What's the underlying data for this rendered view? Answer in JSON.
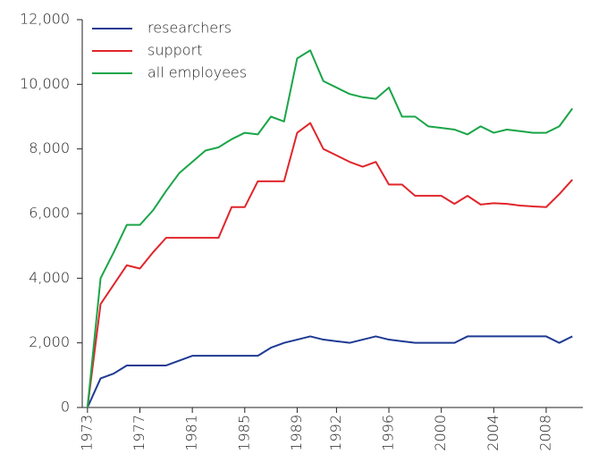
{
  "chart_data": {
    "type": "line",
    "x": [
      1973,
      1974,
      1975,
      1976,
      1977,
      1978,
      1979,
      1980,
      1981,
      1982,
      1983,
      1984,
      1985,
      1986,
      1987,
      1988,
      1989,
      1990,
      1991,
      1992,
      1993,
      1994,
      1995,
      1996,
      1997,
      1998,
      1999,
      2000,
      2001,
      2002,
      2003,
      2004,
      2005,
      2006,
      2007,
      2008,
      2009,
      2010
    ],
    "series": [
      {
        "name": "researchers",
        "color": "#1f3a93",
        "values": [
          0,
          900,
          1050,
          1300,
          1300,
          1300,
          1300,
          1450,
          1600,
          1600,
          1600,
          1600,
          1600,
          1600,
          1850,
          2000,
          2100,
          2200,
          2100,
          2050,
          2000,
          2100,
          2200,
          2100,
          2050,
          2000,
          2000,
          2000,
          2000,
          2200,
          2200,
          2200,
          2200,
          2200,
          2200,
          2200,
          2000,
          2200
        ]
      },
      {
        "name": "support",
        "color": "#e0262b",
        "values": [
          0,
          3200,
          3800,
          4400,
          4300,
          4800,
          5250,
          5250,
          5250,
          5250,
          5250,
          6200,
          6200,
          7000,
          7000,
          7000,
          8500,
          8800,
          8000,
          7800,
          7600,
          7450,
          7600,
          6900,
          6900,
          6550,
          6550,
          6550,
          6300,
          6550,
          6280,
          6320,
          6300,
          6250,
          6220,
          6200,
          6600,
          7050
        ]
      },
      {
        "name": "all employees",
        "color": "#1aa548",
        "values": [
          0,
          4000,
          4800,
          5650,
          5650,
          6100,
          6700,
          7250,
          7600,
          7950,
          8050,
          8300,
          8500,
          8450,
          9000,
          8850,
          10800,
          11050,
          10100,
          9900,
          9700,
          9600,
          9550,
          9900,
          9000,
          9000,
          8700,
          8650,
          8600,
          8450,
          8700,
          8500,
          8600,
          8550,
          8500,
          8500,
          8700,
          9250
        ]
      }
    ],
    "xlim": [
      1972.6,
      2010.8
    ],
    "xticks": [
      1973,
      1977,
      1981,
      1985,
      1989,
      1992,
      1996,
      2000,
      2004,
      2008
    ],
    "ylim": [
      0,
      12000
    ],
    "yticks": [
      0,
      {
        "value": 2000,
        "label": "2,000"
      },
      {
        "value": 4000,
        "label": "4,000"
      },
      {
        "value": 6000,
        "label": "6,000"
      },
      {
        "value": 8000,
        "label": "8,000"
      },
      {
        "value": 10000,
        "label": "10,000"
      },
      {
        "value": 12000,
        "label": "12,000"
      }
    ],
    "legend": "top-left",
    "grid": false
  }
}
